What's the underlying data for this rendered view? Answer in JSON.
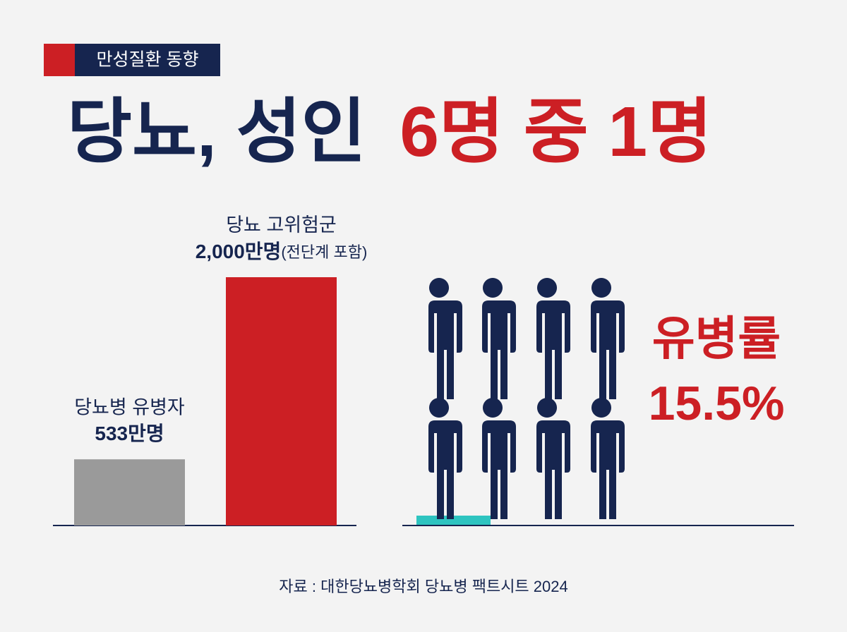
{
  "header": {
    "badge": "만성질환 동향",
    "title_main": "당뇨, 성인",
    "title_highlight": "6명 중 1명"
  },
  "chart_data": [
    {
      "type": "bar",
      "categories": [
        "당뇨병 유병자",
        "당뇨 고위험군"
      ],
      "values": [
        533,
        2000
      ],
      "value_labels": [
        "533만명",
        "2,000만명"
      ],
      "note": "(전단계 포함)",
      "colors": [
        "#9a9a9a",
        "#cc1f24"
      ]
    },
    {
      "type": "pictogram",
      "total": 8,
      "filled": 1.5,
      "label": "유병률",
      "value": 15.5,
      "value_label": "15.5%",
      "colors": {
        "filled": "#cc1f24",
        "empty": "#16254f"
      }
    }
  ],
  "source": "자료 : 대한당뇨병학회 당뇨병 팩트시트 2024"
}
